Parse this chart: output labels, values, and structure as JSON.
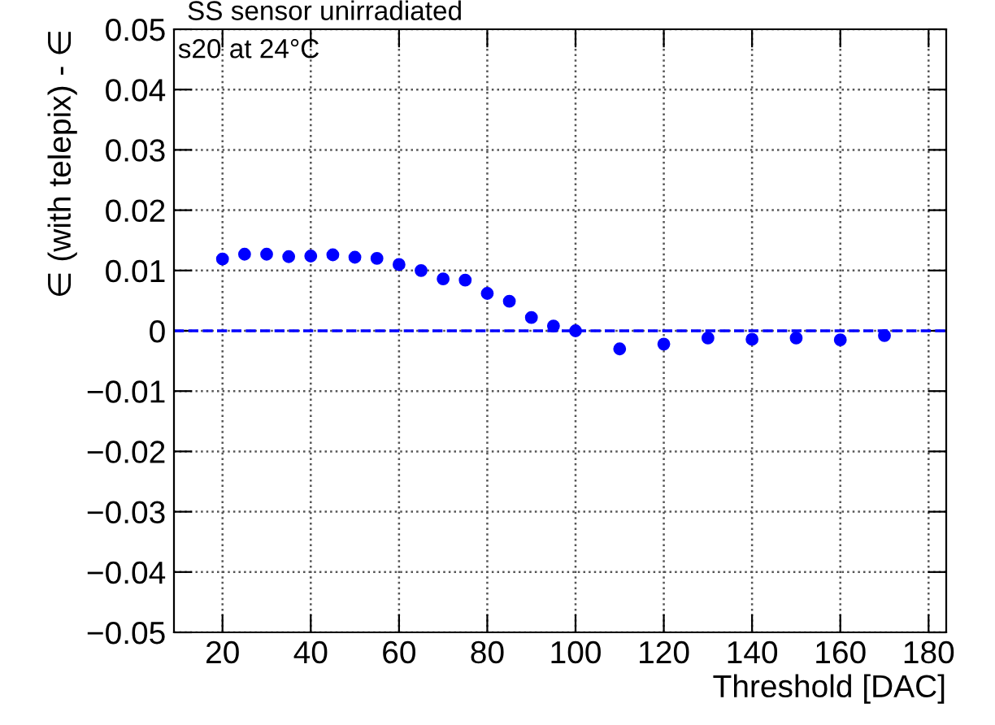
{
  "chart_data": {
    "type": "scatter",
    "title": "SS sensor unirradiated",
    "xlabel": "Threshold [DAC]",
    "ylabel": "∈ (with telepix) - ∈",
    "annotations": [
      "s20 at 24°C"
    ],
    "x": [
      20,
      25,
      30,
      35,
      40,
      45,
      50,
      55,
      60,
      65,
      70,
      75,
      80,
      85,
      90,
      95,
      100,
      110,
      120,
      130,
      140,
      150,
      160,
      170
    ],
    "series": [
      {
        "color": "#0000ff",
        "values": [
          0.0119,
          0.0127,
          0.0127,
          0.0123,
          0.0124,
          0.0126,
          0.0122,
          0.012,
          0.011,
          0.01,
          0.0086,
          0.0084,
          0.0062,
          0.0049,
          0.0022,
          0.0008,
          0.0,
          -0.003,
          -0.0022,
          -0.0012,
          -0.0014,
          -0.0012,
          -0.0015,
          -0.0008
        ]
      }
    ],
    "marker": "circle",
    "xlim": [
      9,
      184
    ],
    "xticks": [
      20,
      40,
      60,
      80,
      100,
      120,
      140,
      160,
      180
    ],
    "ylim": [
      -0.05,
      0.05
    ],
    "yticks": [
      {
        "value": -0.05,
        "label": "−0.05"
      },
      {
        "value": -0.04,
        "label": "−0.04"
      },
      {
        "value": -0.03,
        "label": "−0.03"
      },
      {
        "value": -0.02,
        "label": "−0.02"
      },
      {
        "value": -0.01,
        "label": "−0.01"
      },
      0,
      0.01,
      0.02,
      0.03,
      0.04,
      0.05
    ],
    "ref_lines": [
      {
        "axis": "y",
        "value": 0,
        "color": "#0000ff",
        "line_style": "dashed"
      }
    ],
    "grid": true
  }
}
